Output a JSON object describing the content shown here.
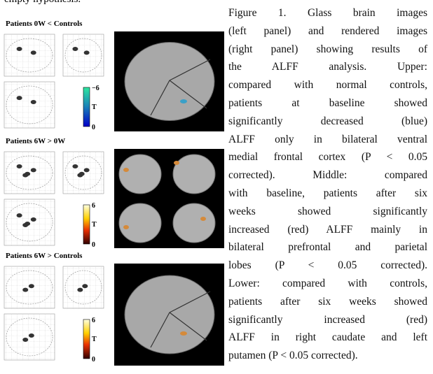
{
  "cropped_text": "empty hypothesis.",
  "panels": [
    {
      "label": "Patients 0W < Controls",
      "colorbar_top": "−6",
      "colorbar_symbol": "T",
      "colorbar_bottom": "0"
    },
    {
      "label": "Patients 6W > 0W",
      "colorbar_top": "6",
      "colorbar_symbol": "T",
      "colorbar_bottom": "0"
    },
    {
      "label": "Patients 6W > Controls",
      "colorbar_top": "6",
      "colorbar_symbol": "T",
      "colorbar_bottom": "0"
    }
  ],
  "caption_lines": [
    "Figure 1. Glass brain images",
    "(left panel) and rendered images",
    "(right panel) showing results of",
    "the ALFF analysis. Upper:",
    "compared with normal controls,",
    "patients at baseline showed",
    "significantly decreased (blue)",
    "ALFF only in bilateral ventral",
    "medial frontal cortex (P < 0.05",
    "corrected). Middle: compared",
    "with baseline, patients after six",
    "weeks showed significantly",
    "increased (red) ALFF mainly in",
    "bilateral prefrontal and parietal",
    "lobes (P < 0.05 corrected).",
    "Lower: compared with controls,",
    "patients after six weeks showed",
    "significantly increased (red)",
    "ALFF in right caudate and left",
    "putamen (P < 0.05 corrected)."
  ]
}
